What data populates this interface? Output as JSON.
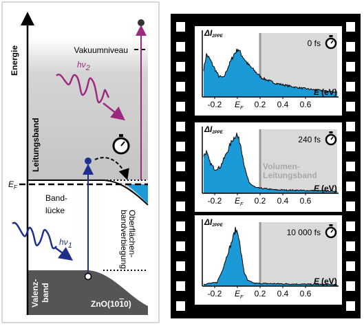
{
  "energy_diagram": {
    "axis_label": "Energie",
    "vacuum_level": "Vakuumniveau",
    "conduction_band": "Leitungsband",
    "fermi_level": {
      "symbol": "E",
      "subscript": "F"
    },
    "band_gap": [
      "Band-",
      "lücke"
    ],
    "band_bending": [
      "Oberflächen-",
      "bandverbiegung"
    ],
    "valence_band": [
      "Valenz-",
      "band"
    ],
    "material": {
      "prefix": "ZnO(10",
      "overlined": "1",
      "suffix": "0)"
    },
    "pump_photon": {
      "symbol": "hν",
      "subscript": "1"
    },
    "probe_photon": {
      "symbol": "hν",
      "subscript": "2"
    }
  },
  "spectra": {
    "y_label": {
      "symbol": "ΔI",
      "subscript": "2PPE"
    },
    "x_tick_labels": [
      "-0.2",
      {
        "symbol": "E",
        "subscript": "F"
      },
      "0.2",
      "0.4",
      "0.6"
    ],
    "x_label": {
      "symbol": "E",
      "unit": "(eV)"
    },
    "panels": [
      {
        "delay": "0 fs"
      },
      {
        "delay": "240 fs",
        "region_label": [
          "Volumen-",
          "Leitungsband"
        ]
      },
      {
        "delay": "10 000 fs"
      }
    ]
  }
}
